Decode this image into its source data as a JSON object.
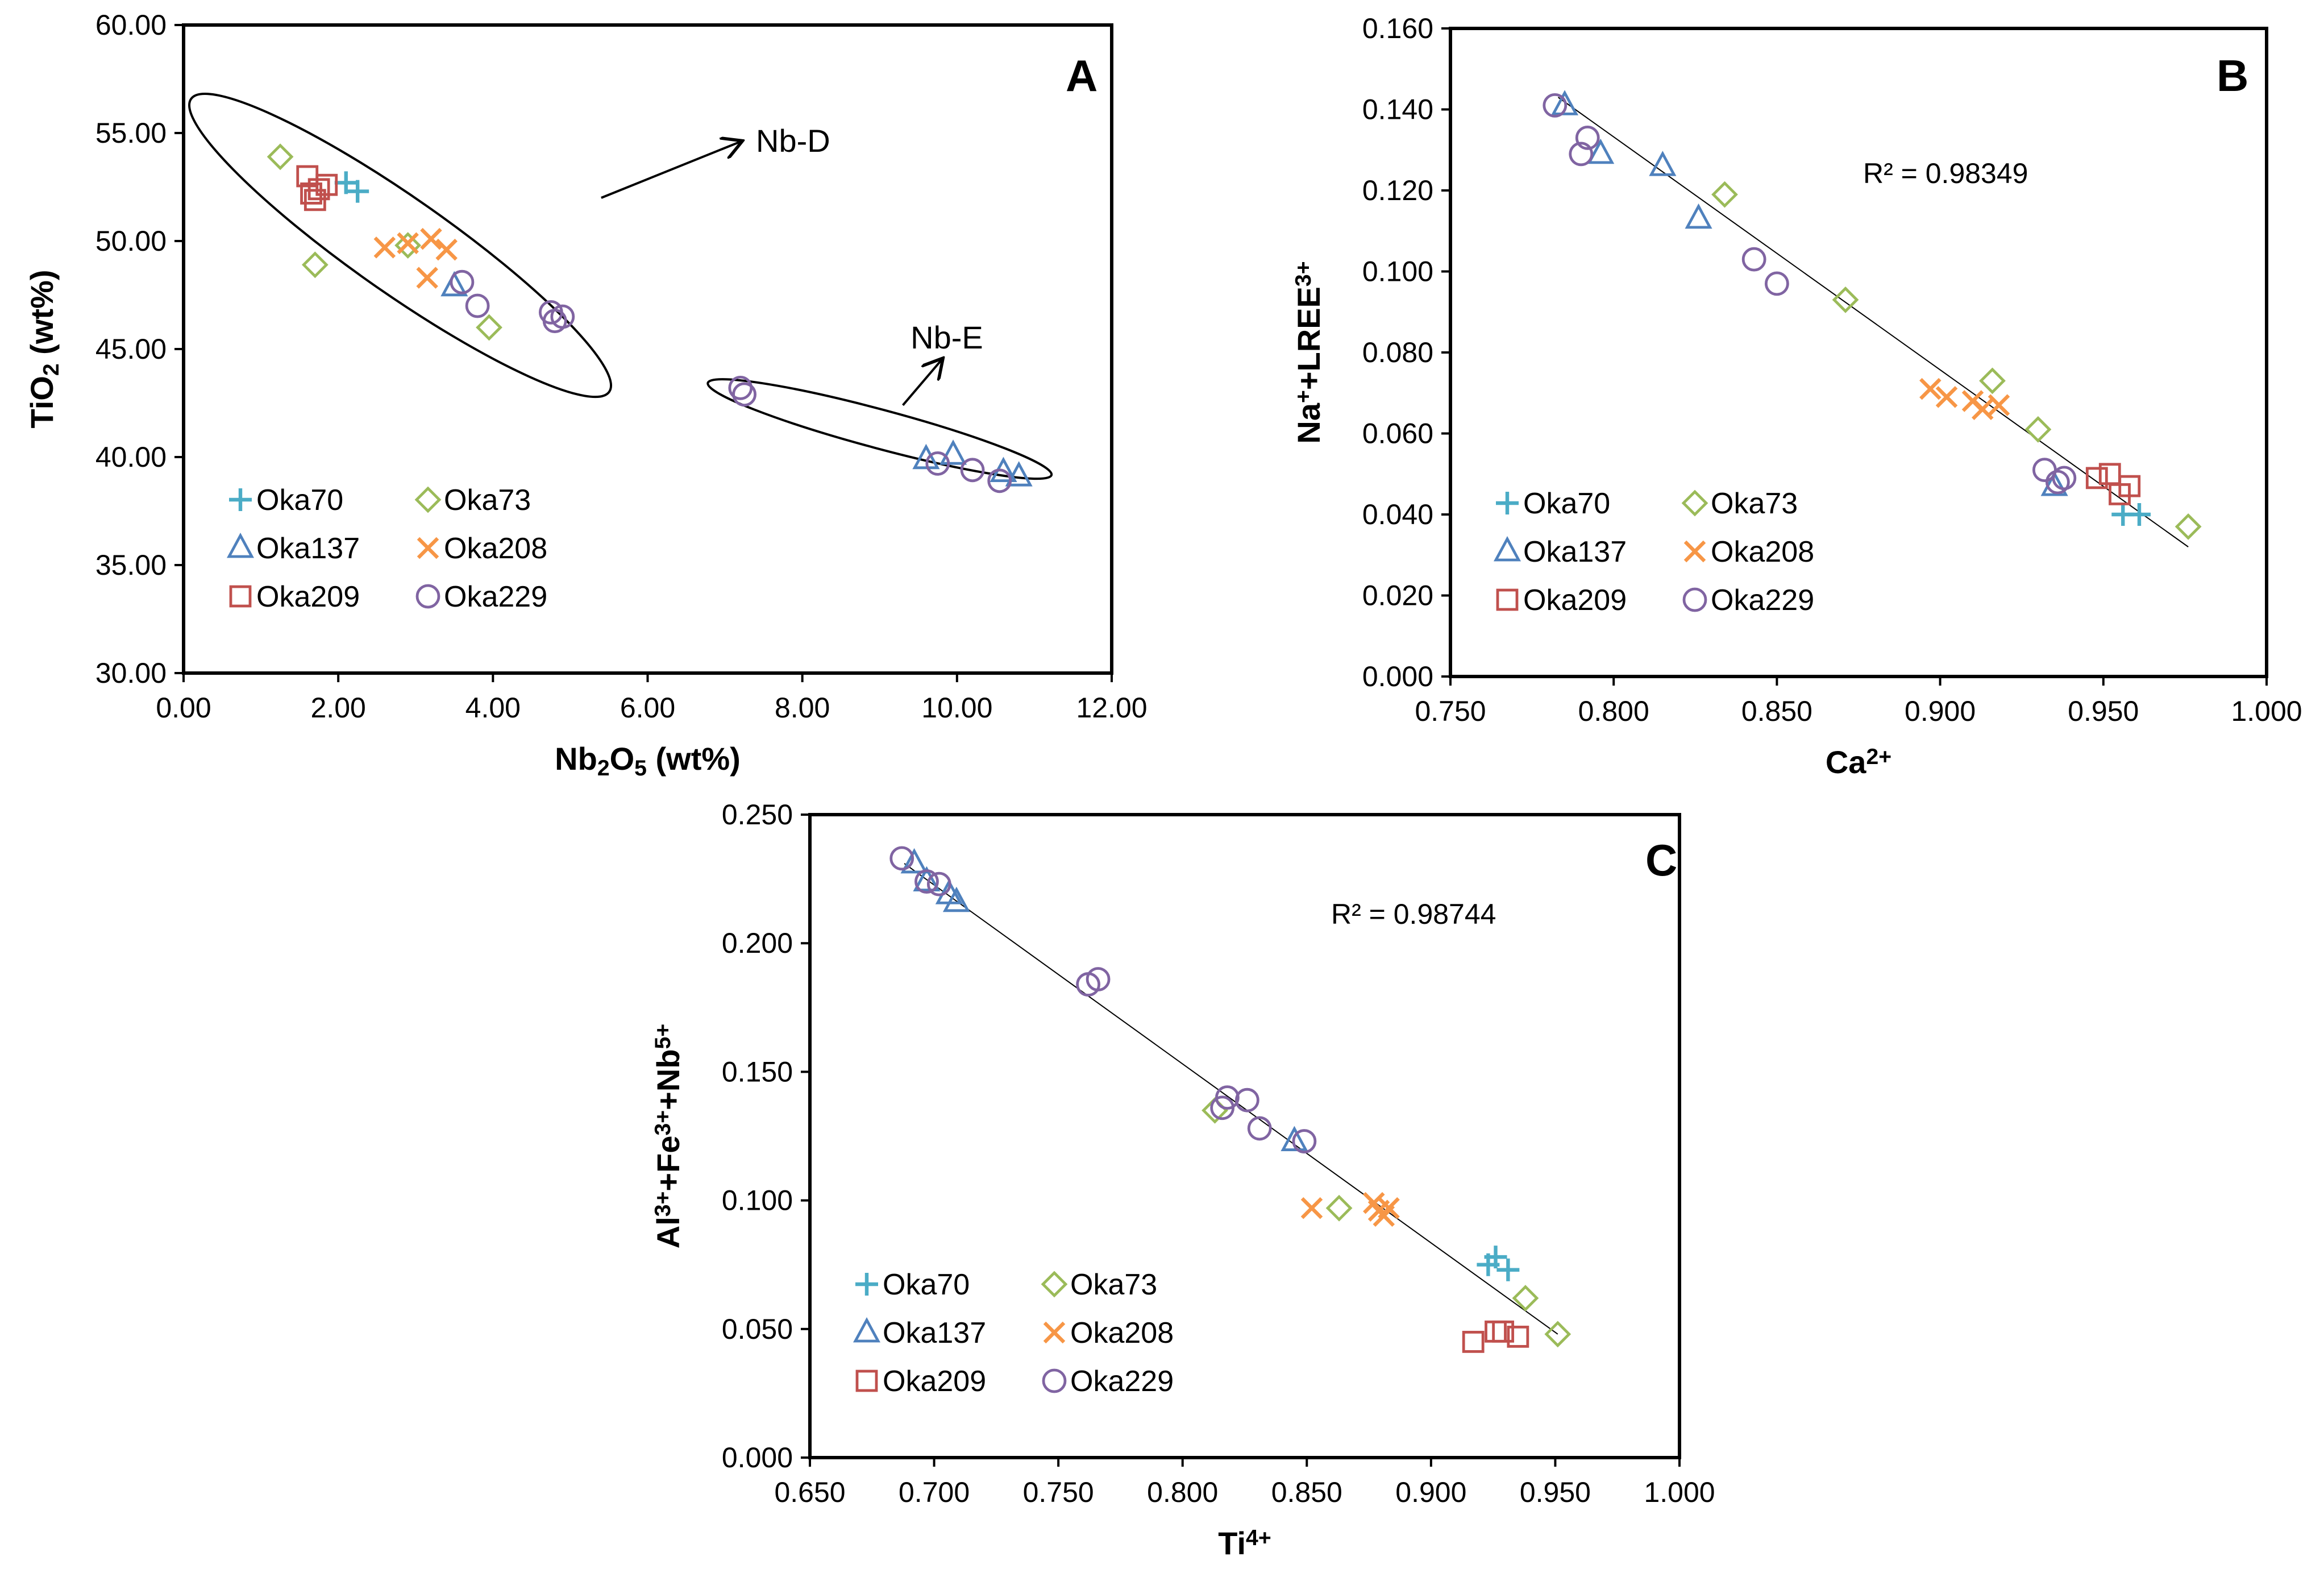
{
  "figure": {
    "description_free": true
  },
  "series_styles": {
    "Oka70": {
      "marker": "plus",
      "color": "#4bacc6"
    },
    "Oka73": {
      "marker": "diamond",
      "color": "#9bbb59"
    },
    "Oka137": {
      "marker": "triangle",
      "color": "#4f81bd"
    },
    "Oka208": {
      "marker": "x",
      "color": "#f79646"
    },
    "Oka209": {
      "marker": "square",
      "color": "#c0504d"
    },
    "Oka229": {
      "marker": "circle",
      "color": "#8064a2"
    }
  },
  "chart_data": [
    {
      "id": "A",
      "type": "scatter",
      "panel_label": "A",
      "xlabel": "Nb2O5 (wt%)",
      "ylabel": "TiO2 (wt%)",
      "xlim": [
        0,
        12
      ],
      "ylim": [
        30,
        60
      ],
      "xticks": [
        0,
        2,
        4,
        6,
        8,
        10,
        12
      ],
      "xtick_labels": [
        "0.00",
        "2.00",
        "4.00",
        "6.00",
        "8.00",
        "10.00",
        "12.00"
      ],
      "yticks": [
        30,
        35,
        40,
        45,
        50,
        55,
        60
      ],
      "ytick_labels": [
        "30.00",
        "35.00",
        "40.00",
        "45.00",
        "50.00",
        "55.00",
        "60.00"
      ],
      "legend_position": "bottom-left",
      "annotations": [
        {
          "text": "Nb-D",
          "label_at": [
            7.4,
            54.6
          ],
          "arrow_from": [
            5.4,
            52.0
          ],
          "arrow_to": [
            7.2,
            54.6
          ]
        },
        {
          "text": "Nb-E",
          "label_at": [
            9.4,
            45.5
          ],
          "arrow_from": [
            9.3,
            42.4
          ],
          "arrow_to": [
            9.8,
            44.5
          ]
        }
      ],
      "ellipses": [
        {
          "name": "Nb-D",
          "cx": 2.8,
          "cy": 49.8,
          "rx": 3.3,
          "ry": 2.2,
          "angle_deg": 35
        },
        {
          "name": "Nb-E",
          "cx": 9.0,
          "cy": 41.3,
          "rx": 2.3,
          "ry": 0.9,
          "angle_deg": 15
        }
      ],
      "series": [
        {
          "name": "Oka70",
          "points": [
            [
              2.1,
              52.7
            ],
            [
              2.25,
              52.3
            ]
          ]
        },
        {
          "name": "Oka73",
          "points": [
            [
              1.25,
              53.9
            ],
            [
              1.7,
              48.9
            ],
            [
              2.9,
              49.8
            ],
            [
              3.95,
              46.0
            ]
          ]
        },
        {
          "name": "Oka137",
          "points": [
            [
              3.5,
              47.9
            ],
            [
              9.6,
              39.9
            ],
            [
              9.95,
              40.1
            ],
            [
              10.6,
              39.3
            ],
            [
              10.8,
              39.1
            ]
          ]
        },
        {
          "name": "Oka208",
          "points": [
            [
              2.6,
              49.7
            ],
            [
              2.9,
              49.9
            ],
            [
              3.2,
              50.1
            ],
            [
              3.15,
              48.3
            ],
            [
              3.4,
              49.6
            ]
          ]
        },
        {
          "name": "Oka209",
          "points": [
            [
              1.6,
              53.0
            ],
            [
              1.75,
              52.4
            ],
            [
              1.85,
              52.6
            ],
            [
              1.7,
              51.9
            ],
            [
              1.65,
              52.2
            ]
          ]
        },
        {
          "name": "Oka229",
          "points": [
            [
              3.6,
              48.1
            ],
            [
              3.8,
              47.0
            ],
            [
              4.75,
              46.7
            ],
            [
              4.8,
              46.3
            ],
            [
              4.9,
              46.5
            ],
            [
              7.2,
              43.2
            ],
            [
              7.25,
              42.9
            ],
            [
              9.75,
              39.7
            ],
            [
              10.2,
              39.4
            ],
            [
              10.55,
              38.9
            ]
          ]
        }
      ]
    },
    {
      "id": "B",
      "type": "scatter",
      "panel_label": "B",
      "xlabel": "Ca2+",
      "ylabel": "Na++LREE3+",
      "xlim": [
        0.75,
        1.0
      ],
      "ylim": [
        0,
        0.16
      ],
      "xticks": [
        0.75,
        0.8,
        0.85,
        0.9,
        0.95,
        1.0
      ],
      "xtick_labels": [
        "0.750",
        "0.800",
        "0.850",
        "0.900",
        "0.950",
        "1.000"
      ],
      "yticks": [
        0,
        0.02,
        0.04,
        0.06,
        0.08,
        0.1,
        0.12,
        0.14,
        0.16
      ],
      "ytick_labels": [
        "0.000",
        "0.020",
        "0.040",
        "0.060",
        "0.080",
        "0.100",
        "0.120",
        "0.140",
        "0.160"
      ],
      "r_squared_text": "R² = 0.98349",
      "trendline": [
        [
          0.783,
          0.143
        ],
        [
          0.976,
          0.032
        ]
      ],
      "legend_position": "bottom-left",
      "series": [
        {
          "name": "Oka70",
          "points": [
            [
              0.956,
              0.04
            ],
            [
              0.961,
              0.04
            ]
          ]
        },
        {
          "name": "Oka73",
          "points": [
            [
              0.834,
              0.119
            ],
            [
              0.871,
              0.093
            ],
            [
              0.916,
              0.073
            ],
            [
              0.93,
              0.061
            ],
            [
              0.976,
              0.037
            ]
          ]
        },
        {
          "name": "Oka137",
          "points": [
            [
              0.785,
              0.141
            ],
            [
              0.796,
              0.129
            ],
            [
              0.815,
              0.126
            ],
            [
              0.826,
              0.113
            ],
            [
              0.935,
              0.047
            ]
          ]
        },
        {
          "name": "Oka208",
          "points": [
            [
              0.897,
              0.071
            ],
            [
              0.902,
              0.069
            ],
            [
              0.91,
              0.068
            ],
            [
              0.913,
              0.066
            ],
            [
              0.918,
              0.067
            ]
          ]
        },
        {
          "name": "Oka209",
          "points": [
            [
              0.948,
              0.049
            ],
            [
              0.952,
              0.05
            ],
            [
              0.955,
              0.045
            ],
            [
              0.958,
              0.047
            ]
          ]
        },
        {
          "name": "Oka229",
          "points": [
            [
              0.782,
              0.141
            ],
            [
              0.79,
              0.129
            ],
            [
              0.792,
              0.133
            ],
            [
              0.843,
              0.103
            ],
            [
              0.85,
              0.097
            ],
            [
              0.932,
              0.051
            ],
            [
              0.936,
              0.048
            ],
            [
              0.938,
              0.049
            ]
          ]
        }
      ]
    },
    {
      "id": "C",
      "type": "scatter",
      "panel_label": "C",
      "xlabel": "Ti4+",
      "ylabel": "Al3++Fe3++Nb5+",
      "xlim": [
        0.65,
        1.0
      ],
      "ylim": [
        0,
        0.25
      ],
      "xticks": [
        0.65,
        0.7,
        0.75,
        0.8,
        0.85,
        0.9,
        0.95,
        1.0
      ],
      "xtick_labels": [
        "0.650",
        "0.700",
        "0.750",
        "0.800",
        "0.850",
        "0.900",
        "0.950",
        "1.000"
      ],
      "yticks": [
        0,
        0.05,
        0.1,
        0.15,
        0.2,
        0.25
      ],
      "ytick_labels": [
        "0.000",
        "0.050",
        "0.100",
        "0.150",
        "0.200",
        "0.250"
      ],
      "r_squared_text": "R² = 0.98744",
      "trendline": [
        [
          0.688,
          0.231
        ],
        [
          0.951,
          0.048
        ]
      ],
      "legend_position": "bottom-left",
      "series": [
        {
          "name": "Oka70",
          "points": [
            [
              0.923,
              0.075
            ],
            [
              0.926,
              0.078
            ],
            [
              0.931,
              0.073
            ]
          ]
        },
        {
          "name": "Oka73",
          "points": [
            [
              0.813,
              0.135
            ],
            [
              0.863,
              0.097
            ],
            [
              0.938,
              0.062
            ],
            [
              0.951,
              0.048
            ]
          ]
        },
        {
          "name": "Oka137",
          "points": [
            [
              0.692,
              0.231
            ],
            [
              0.697,
              0.224
            ],
            [
              0.706,
              0.219
            ],
            [
              0.709,
              0.216
            ],
            [
              0.845,
              0.123
            ]
          ]
        },
        {
          "name": "Oka208",
          "points": [
            [
              0.852,
              0.097
            ],
            [
              0.877,
              0.099
            ],
            [
              0.879,
              0.096
            ],
            [
              0.881,
              0.094
            ],
            [
              0.883,
              0.097
            ]
          ]
        },
        {
          "name": "Oka209",
          "points": [
            [
              0.917,
              0.045
            ],
            [
              0.926,
              0.049
            ],
            [
              0.929,
              0.049
            ],
            [
              0.935,
              0.047
            ]
          ]
        },
        {
          "name": "Oka229",
          "points": [
            [
              0.687,
              0.233
            ],
            [
              0.697,
              0.224
            ],
            [
              0.702,
              0.223
            ],
            [
              0.762,
              0.184
            ],
            [
              0.766,
              0.186
            ],
            [
              0.816,
              0.136
            ],
            [
              0.818,
              0.14
            ],
            [
              0.826,
              0.139
            ],
            [
              0.831,
              0.128
            ],
            [
              0.849,
              0.123
            ]
          ]
        }
      ]
    }
  ]
}
